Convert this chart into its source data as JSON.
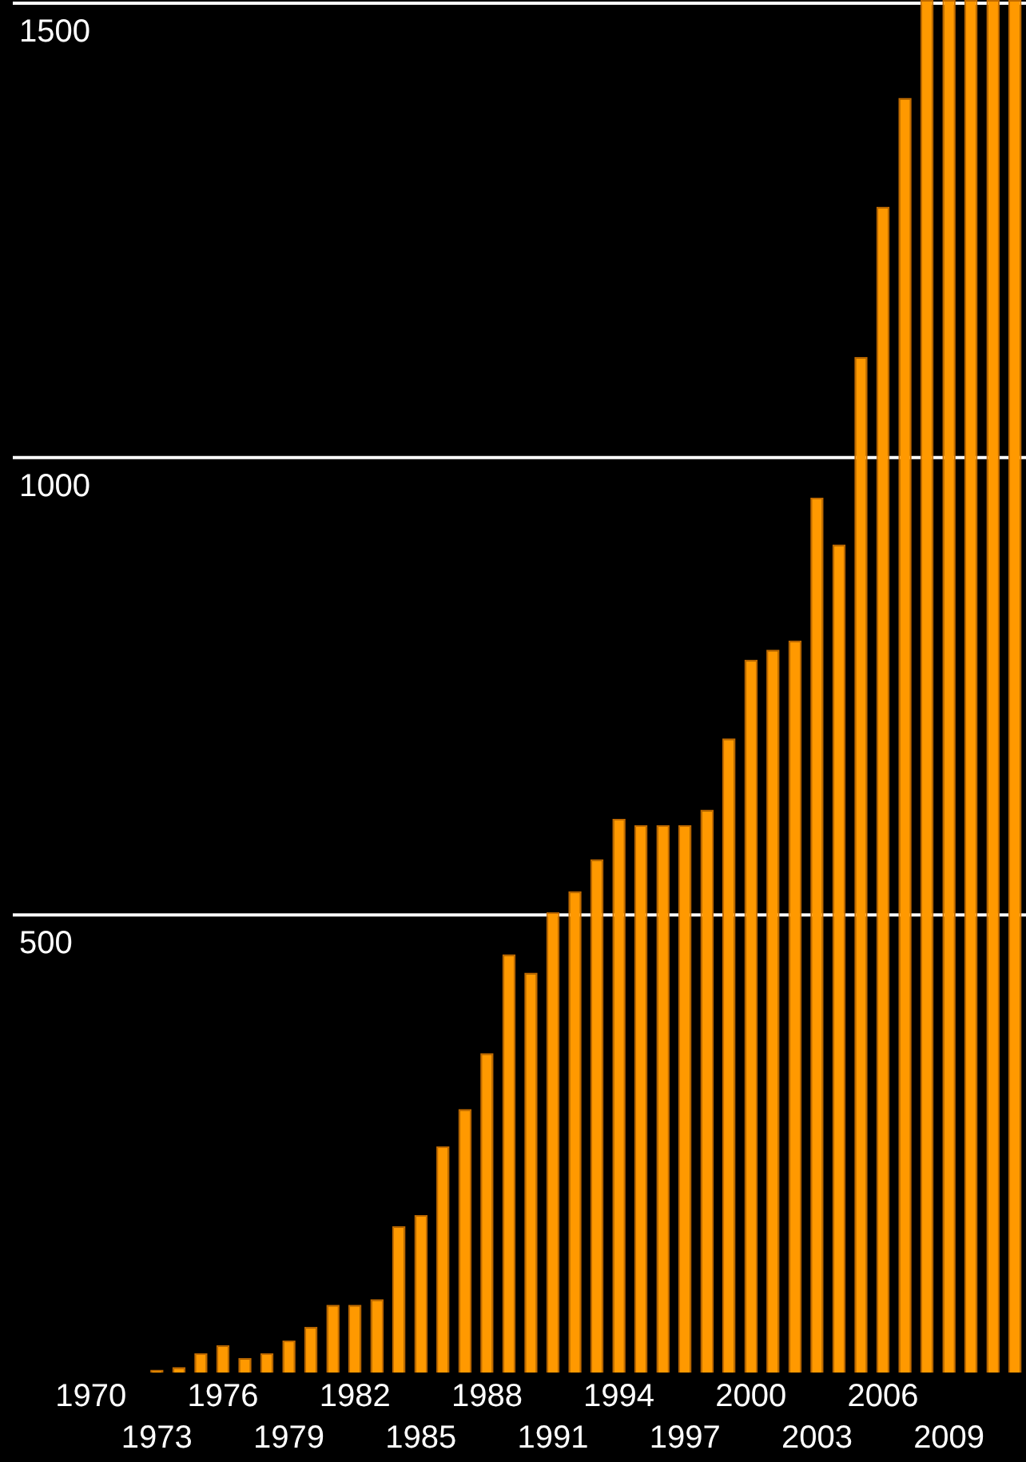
{
  "chart_data": {
    "type": "bar",
    "categories": [
      "1970",
      null,
      null,
      "1973",
      null,
      null,
      "1976",
      null,
      null,
      "1979",
      null,
      null,
      "1982",
      null,
      null,
      "1985",
      null,
      null,
      "1988",
      null,
      null,
      "1991",
      null,
      null,
      "1994",
      null,
      null,
      "1997",
      null,
      null,
      "2000",
      null,
      null,
      "2003",
      null,
      null,
      "2006",
      null,
      null,
      "2009",
      null,
      null,
      null
    ],
    "values": [
      0,
      0,
      0,
      3,
      6,
      21,
      30,
      16,
      21,
      35,
      50,
      74,
      74,
      80,
      160,
      172,
      247,
      288,
      349,
      457,
      437,
      503,
      526,
      561,
      605,
      598,
      598,
      598,
      615,
      693,
      779,
      790,
      800,
      956,
      905,
      1110,
      1274,
      1393,
      1500,
      1500,
      1500,
      1500,
      1500
    ],
    "color": "#ff9900",
    "ylim": [
      0,
      1500
    ],
    "yticks": [
      500,
      1000,
      1500
    ],
    "grid": "y"
  }
}
